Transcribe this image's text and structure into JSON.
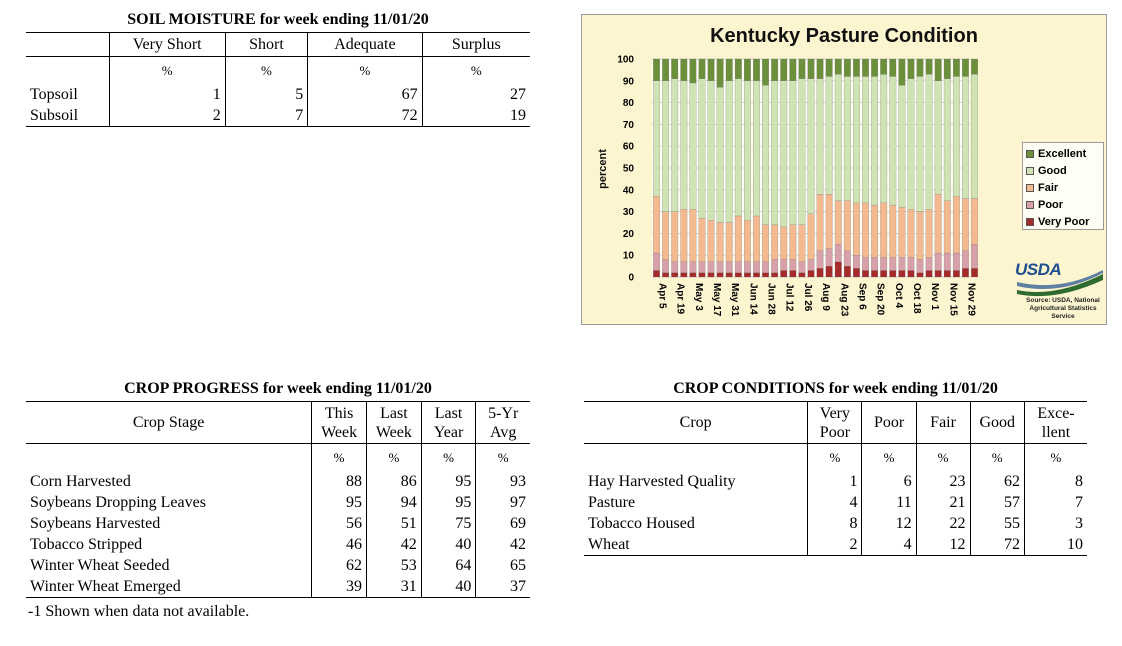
{
  "soil": {
    "title": "SOIL MOISTURE for week ending 11/01/20",
    "headers": [
      "Very Short",
      "Short",
      "Adequate",
      "Surplus"
    ],
    "unit": "%",
    "rows": [
      {
        "label": "Topsoil",
        "values": [
          "1",
          "5",
          "67",
          "27"
        ]
      },
      {
        "label": "Subsoil",
        "values": [
          "2",
          "7",
          "72",
          "19"
        ]
      }
    ]
  },
  "progress": {
    "title": "CROP PROGRESS for week ending 11/01/20",
    "stage_header": "Crop Stage",
    "headers": [
      [
        "This",
        "Week"
      ],
      [
        "Last",
        "Week"
      ],
      [
        "Last",
        "Year"
      ],
      [
        "5-Yr",
        "Avg"
      ]
    ],
    "unit": "%",
    "rows": [
      {
        "label": "Corn Harvested",
        "values": [
          "88",
          "86",
          "95",
          "93"
        ]
      },
      {
        "label": "Soybeans Dropping Leaves",
        "values": [
          "95",
          "94",
          "95",
          "97"
        ]
      },
      {
        "label": "Soybeans Harvested",
        "values": [
          "56",
          "51",
          "75",
          "69"
        ]
      },
      {
        "label": "Tobacco Stripped",
        "values": [
          "46",
          "42",
          "40",
          "42"
        ]
      },
      {
        "label": "Winter Wheat Seeded",
        "values": [
          "62",
          "53",
          "64",
          "65"
        ]
      },
      {
        "label": "Winter Wheat Emerged",
        "values": [
          "39",
          "31",
          "40",
          "37"
        ]
      }
    ],
    "footnote": "-1 Shown when data not available."
  },
  "conditions": {
    "title": "CROP CONDITIONS for week ending 11/01/20",
    "crop_header": "Crop",
    "headers": [
      [
        "Very",
        "Poor"
      ],
      [
        "Poor",
        ""
      ],
      [
        "Fair",
        ""
      ],
      [
        "Good",
        ""
      ],
      [
        "Exce-",
        "llent"
      ]
    ],
    "unit": "%",
    "rows": [
      {
        "label": "Hay Harvested Quality",
        "values": [
          "1",
          "6",
          "23",
          "62",
          "8"
        ]
      },
      {
        "label": "Pasture",
        "values": [
          "4",
          "11",
          "21",
          "57",
          "7"
        ]
      },
      {
        "label": "Tobacco Housed",
        "values": [
          "8",
          "12",
          "22",
          "55",
          "3"
        ]
      },
      {
        "label": "Wheat",
        "values": [
          "2",
          "4",
          "12",
          "72",
          "10"
        ]
      }
    ]
  },
  "chart_data": {
    "type": "bar",
    "stacked": true,
    "title": "Kentucky Pasture Condition",
    "ylabel": "percent",
    "ylim": [
      0,
      100
    ],
    "yticks": [
      "0",
      "10",
      "20",
      "30",
      "40",
      "50",
      "60",
      "70",
      "80",
      "90",
      "100"
    ],
    "xtick_labels": [
      "Apr 5",
      "Apr 19",
      "May 3",
      "May 17",
      "May 31",
      "Jun 14",
      "Jun 28",
      "Jul 12",
      "Jul 26",
      "Aug 9",
      "Aug 23",
      "Sep 6",
      "Sep 20",
      "Oct 4",
      "Oct 18",
      "Nov 1",
      "Nov 15",
      "Nov 29"
    ],
    "legend_position": "right",
    "series_colors": {
      "Very Poor": "#a52a2a",
      "Poor": "#d8a0a8",
      "Fair": "#f4b98f",
      "Good": "#cfe3b5",
      "Excellent": "#6b8f3a"
    },
    "series": [
      {
        "name": "Very Poor",
        "values": [
          3,
          2,
          2,
          2,
          2,
          2,
          2,
          2,
          2,
          2,
          2,
          2,
          2,
          2,
          3,
          3,
          2,
          3,
          4,
          5,
          7,
          5,
          4,
          3,
          3,
          3,
          3,
          3,
          3,
          2,
          3,
          3,
          3,
          3,
          4,
          4
        ]
      },
      {
        "name": "Poor",
        "values": [
          8,
          6,
          5,
          5,
          5,
          5,
          5,
          5,
          5,
          5,
          5,
          5,
          5,
          6,
          5,
          5,
          5,
          5,
          8,
          8,
          8,
          7,
          6,
          6,
          6,
          6,
          6,
          6,
          6,
          6,
          6,
          8,
          8,
          8,
          8,
          11
        ]
      },
      {
        "name": "Fair",
        "values": [
          26,
          22,
          23,
          24,
          24,
          20,
          19,
          18,
          18,
          21,
          19,
          21,
          17,
          16,
          15,
          16,
          17,
          21,
          26,
          25,
          20,
          23,
          24,
          25,
          24,
          25,
          24,
          23,
          22,
          22,
          22,
          27,
          24,
          26,
          24,
          21
        ]
      },
      {
        "name": "Good",
        "values": [
          53,
          60,
          61,
          59,
          58,
          64,
          64,
          62,
          65,
          63,
          64,
          62,
          64,
          66,
          67,
          66,
          67,
          62,
          53,
          54,
          58,
          57,
          58,
          58,
          59,
          59,
          59,
          56,
          60,
          62,
          62,
          52,
          56,
          55,
          56,
          57
        ]
      },
      {
        "name": "Excellent",
        "values": [
          10,
          10,
          9,
          10,
          11,
          9,
          10,
          13,
          10,
          9,
          10,
          10,
          12,
          10,
          10,
          10,
          9,
          9,
          9,
          8,
          7,
          8,
          8,
          8,
          8,
          7,
          8,
          12,
          9,
          8,
          7,
          10,
          9,
          8,
          8,
          7
        ]
      }
    ]
  },
  "usda": {
    "logo": "USDA",
    "source": "Source: USDA, National Agricultural Statistics Service"
  }
}
